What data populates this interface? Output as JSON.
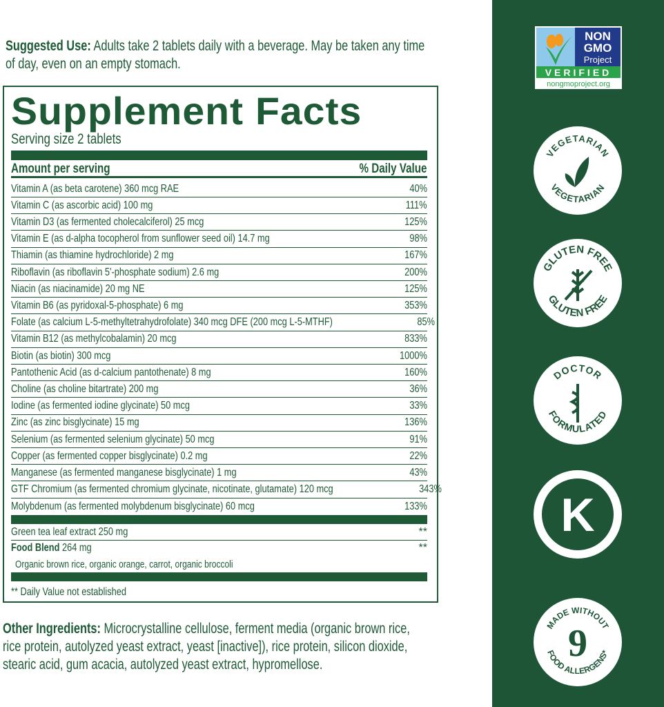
{
  "suggested_use": {
    "label": "Suggested Use:",
    "text": "Adults take 2 tablets daily with a beverage. May be taken any time of day, even on an empty stomach."
  },
  "facts": {
    "title": "Supplement Facts",
    "serving": "Serving size 2 tablets",
    "col_amount": "Amount per serving",
    "col_dv": "% Daily Value",
    "rows": [
      {
        "name": "Vitamin A (as beta carotene) 360 mcg RAE",
        "dv": "40%"
      },
      {
        "name": "Vitamin C (as ascorbic acid) 100 mg",
        "dv": "111%"
      },
      {
        "name": "Vitamin D3 (as fermented cholecalciferol) 25 mcg",
        "dv": "125%"
      },
      {
        "name": "Vitamin E (as d-alpha tocopherol from sunflower seed oil) 14.7 mg",
        "dv": "98%"
      },
      {
        "name": "Thiamin (as thiamine hydrochloride) 2 mg",
        "dv": "167%"
      },
      {
        "name": "Riboflavin (as riboflavin 5'-phosphate sodium) 2.6 mg",
        "dv": "200%"
      },
      {
        "name": "Niacin (as niacinamide) 20 mg NE",
        "dv": "125%"
      },
      {
        "name": "Vitamin B6 (as pyridoxal-5-phosphate) 6 mg",
        "dv": "353%"
      },
      {
        "name": "Folate (as calcium L-5-methyltetrahydrofolate) 340 mcg DFE (200 mcg L-5-MTHF)",
        "dv": "85%"
      },
      {
        "name": "Vitamin B12 (as methylcobalamin) 20 mcg",
        "dv": "833%"
      },
      {
        "name": "Biotin (as biotin) 300 mcg",
        "dv": "1000%"
      },
      {
        "name": "Pantothenic Acid (as d-calcium pantothenate) 8 mg",
        "dv": "160%"
      },
      {
        "name": "Choline (as choline bitartrate) 200 mg",
        "dv": "36%"
      },
      {
        "name": "Iodine (as fermented iodine glycinate) 50 mcg",
        "dv": "33%"
      },
      {
        "name": "Zinc (as zinc bisglycinate) 15 mg",
        "dv": "136%"
      },
      {
        "name": "Selenium (as fermented selenium glycinate) 50 mcg",
        "dv": "91%"
      },
      {
        "name": "Copper (as fermented copper bisglycinate) 0.2 mg",
        "dv": "22%"
      },
      {
        "name": "Manganese (as fermented manganese bisglycinate) 1 mg",
        "dv": "43%"
      },
      {
        "name": "GTF Chromium (as fermented chromium glycinate, nicotinate, glutamate) 120 mcg",
        "dv": "343%"
      },
      {
        "name": "Molybdenum (as fermented molybdenum bisglycinate) 60 mcg",
        "dv": "133%"
      }
    ],
    "green_tea": {
      "name": "Green tea leaf extract 250 mg",
      "dv": "**"
    },
    "food_blend": {
      "label": "Food Blend",
      "amount": "264 mg",
      "dv": "**",
      "sub": "Organic brown rice, organic orange, carrot, organic broccoli"
    },
    "footnote": "** Daily Value not established"
  },
  "other": {
    "label": "Other Ingredients:",
    "text": "Microcrystalline cellulose, ferment media (organic brown rice, rice protein, autolyzed yeast extract, yeast [inactive]), rice protein, silicon dioxide, stearic acid, gum acacia, autolyzed yeast extract, hypromellose."
  },
  "badges": {
    "gmo": {
      "l1": "NON",
      "l2": "GMO",
      "l3": "Project",
      "l4": "VERIFIED",
      "l5": "nongmoproject.org"
    },
    "vegetarian": "VEGETARIAN",
    "gluten": "GLUTEN FREE",
    "doctor_top": "DOCTOR",
    "doctor_bottom": "FORMULATED",
    "kosher": "K",
    "allergen_num": "9",
    "allergen_top": "MADE WITHOUT",
    "allergen_bottom": "FOOD ALLERGENS*"
  },
  "colors": {
    "brand_green": "#1f5a36",
    "sidebar": "#1d5536"
  }
}
